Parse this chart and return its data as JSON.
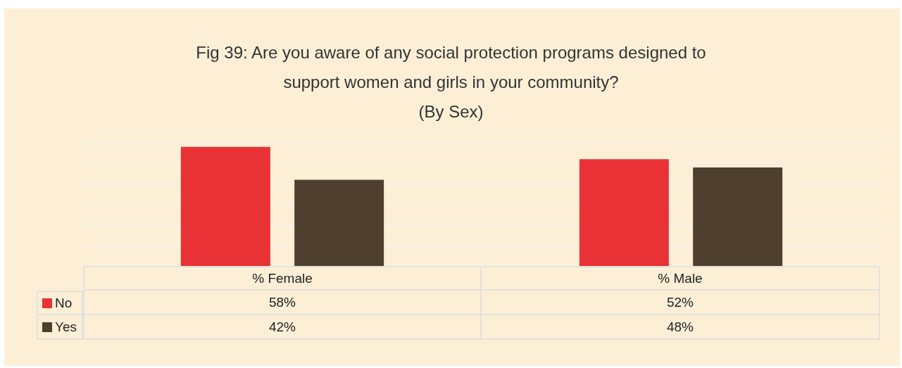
{
  "chart_data": {
    "type": "bar",
    "title": "Fig 39: Are you aware of any social protection programs designed to\nsupport women and girls in your community?\n(By Sex)",
    "categories": [
      "% Female",
      "% Male"
    ],
    "series": [
      {
        "name": "No",
        "color": "#e93236",
        "values": [
          58,
          52
        ],
        "value_labels": [
          "58%",
          "52%"
        ]
      },
      {
        "name": "Yes",
        "color": "#4f3f2e",
        "values": [
          42,
          48
        ],
        "value_labels": [
          "42%",
          "48%"
        ]
      }
    ],
    "grid": "y",
    "tick_labels": "x",
    "legend": "bottom left"
  }
}
